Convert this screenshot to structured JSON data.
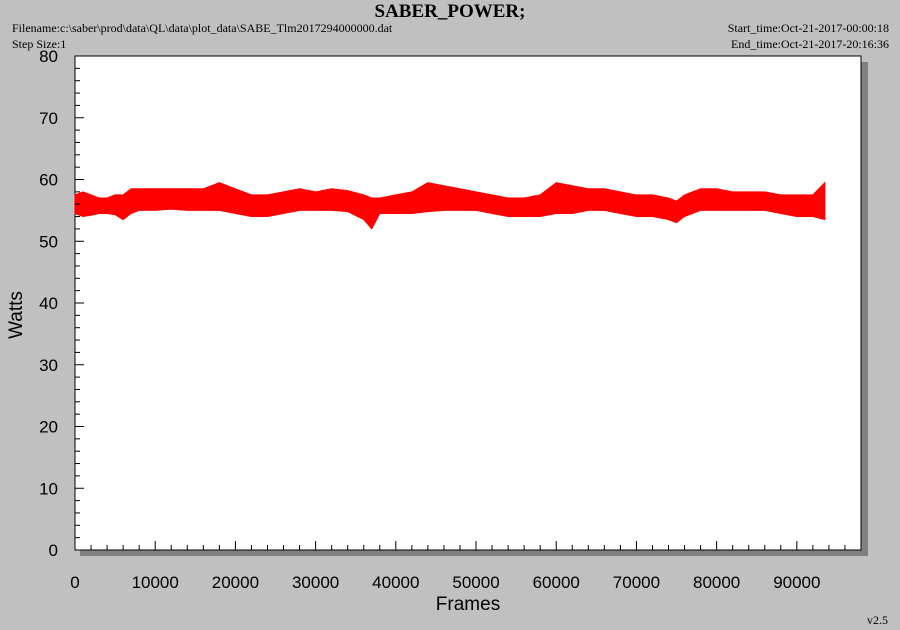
{
  "header": {
    "title": "SABER_POWER;",
    "filename": "Filename:c:\\saber\\prod\\data\\QL\\data\\plot_data\\SABE_Tlm2017294000000.dat",
    "step_size": "Step Size:1",
    "start_time": "Start_time:Oct-21-2017-00:00:18",
    "end_time": "End_time:Oct-21-2017-20:16:36"
  },
  "footer": {
    "version": "v2.5"
  },
  "colors": {
    "series": "#ff0000",
    "plot_bg": "#ffffff",
    "page_bg": "#c0c0c0"
  },
  "chart_data": {
    "type": "line",
    "xlabel": "Frames",
    "ylabel": "Watts",
    "xlim": [
      0,
      98000
    ],
    "ylim": [
      0,
      80
    ],
    "x_ticks": [
      0,
      10000,
      20000,
      30000,
      40000,
      50000,
      60000,
      70000,
      80000,
      90000
    ],
    "y_ticks": [
      0,
      10,
      20,
      30,
      40,
      50,
      60,
      70,
      80
    ],
    "grid": false,
    "series": [
      {
        "color": "#ff0000",
        "x": [
          0,
          1000,
          2000,
          3000,
          4000,
          5000,
          6000,
          7000,
          8000,
          9000,
          10000,
          12000,
          14000,
          16000,
          18000,
          20000,
          22000,
          24000,
          26000,
          28000,
          30000,
          32000,
          34000,
          36000,
          37000,
          38000,
          40000,
          42000,
          44000,
          46000,
          48000,
          50000,
          52000,
          54000,
          56000,
          58000,
          60000,
          62000,
          64000,
          66000,
          68000,
          70000,
          72000,
          74000,
          75000,
          76000,
          78000,
          80000,
          82000,
          84000,
          86000,
          88000,
          90000,
          92000,
          93500
        ],
        "y_min": [
          54.5,
          54,
          54.2,
          54.5,
          54.5,
          54.3,
          53.5,
          54.5,
          55,
          55,
          55,
          55.2,
          55,
          55,
          55,
          54.5,
          54,
          54,
          54.5,
          55,
          55,
          55,
          54.8,
          53.5,
          52,
          54.5,
          54.5,
          54.5,
          54.8,
          55,
          55,
          55,
          54.5,
          54,
          54,
          54,
          54.5,
          54.5,
          55,
          55,
          54.5,
          54,
          54,
          53.5,
          53,
          54,
          55,
          55,
          55,
          55,
          55,
          54.5,
          54,
          54,
          53.5
        ],
        "y_max": [
          57.5,
          58,
          57.5,
          57,
          57,
          57.5,
          57.5,
          58.5,
          58.5,
          58.5,
          58.5,
          58.5,
          58.5,
          58.5,
          59.5,
          58.5,
          57.5,
          57.5,
          58,
          58.5,
          58,
          58.5,
          58.2,
          57.5,
          57,
          57,
          57.5,
          58,
          59.5,
          59,
          58.5,
          58,
          57.5,
          57,
          57,
          57.5,
          59.5,
          59,
          58.5,
          58.5,
          58,
          57.5,
          57.5,
          57,
          56.5,
          57.5,
          58.5,
          58.5,
          58,
          58,
          58,
          57.5,
          57.5,
          57.5,
          59.5
        ]
      }
    ]
  }
}
